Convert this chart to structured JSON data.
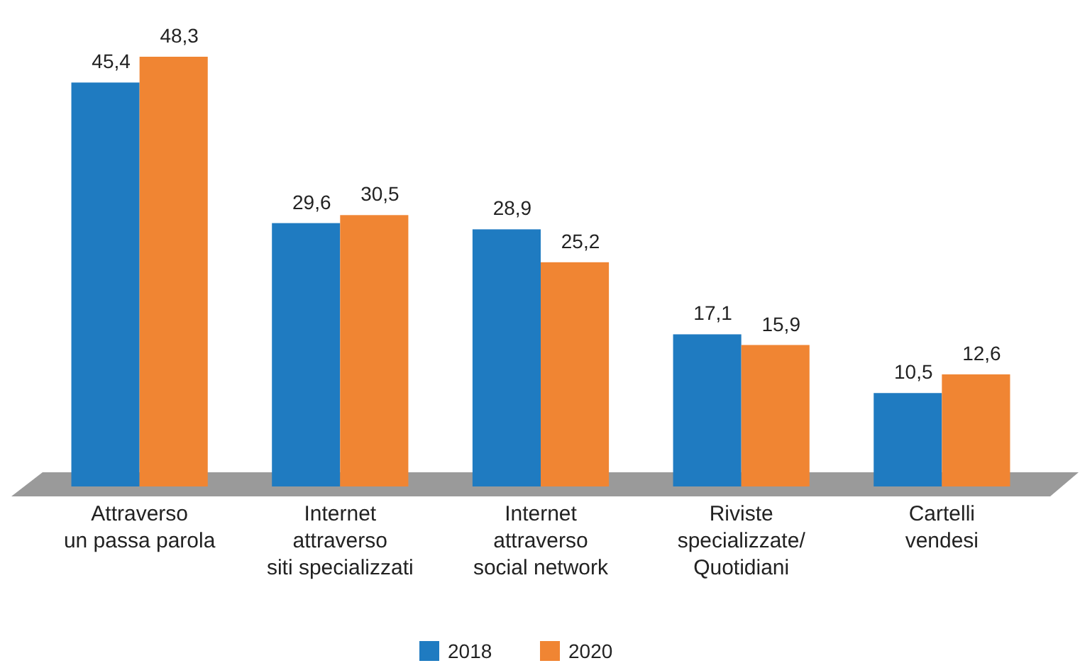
{
  "chart_data": {
    "type": "bar",
    "categories": [
      "Attraverso\nun passa parola",
      "Internet\nattraverso\nsiti specializzati",
      "Internet\nattraverso\nsocial network",
      "Riviste\nspecializzate/\nQuotidiani",
      "Cartelli\nvendesi"
    ],
    "series": [
      {
        "name": "2018",
        "color": "#1f7bc1",
        "values": [
          45.4,
          29.6,
          28.9,
          17.1,
          10.5
        ],
        "value_labels": [
          "45,4",
          "29,6",
          "28,9",
          "17,1",
          "10,5"
        ]
      },
      {
        "name": "2020",
        "color": "#f08533",
        "values": [
          48.3,
          30.5,
          25.2,
          15.9,
          12.6
        ],
        "value_labels": [
          "48,3",
          "30,5",
          "25,2",
          "15,9",
          "12,6"
        ]
      }
    ],
    "legend": "bottom"
  }
}
